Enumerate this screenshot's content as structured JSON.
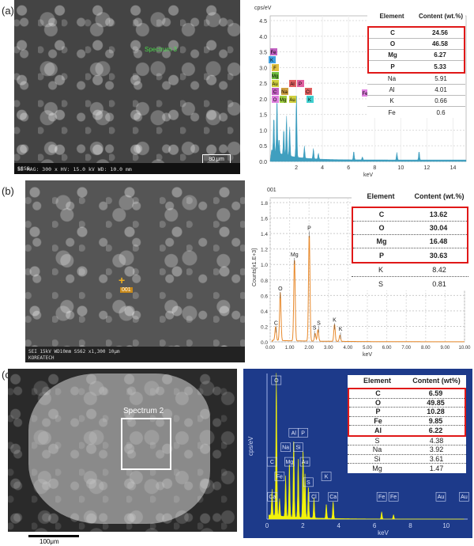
{
  "panels": {
    "a": {
      "label": "(a)",
      "sem_footer": "SE MAG: 300 x HV: 15.0 kV WD: 10.0 mm",
      "sem_scale": "80 μm",
      "sem_id": "SSSS",
      "spot_label": "Spectrum 3",
      "y_unit": "cps/eV",
      "x_unit": "keV",
      "yticks": [
        "0.0",
        "0.5",
        "1.0",
        "1.5",
        "2.0",
        "2.5",
        "3.0",
        "3.5",
        "4.0",
        "4.5"
      ],
      "xticks": [
        "2",
        "4",
        "6",
        "8",
        "10",
        "12",
        "14"
      ],
      "peak_labels": [
        "Fe",
        "K",
        "F",
        "Mg",
        "Au",
        "C",
        "Na",
        "Al",
        "P",
        "Cl",
        "O",
        "Mg",
        "Au",
        "K",
        "Fe"
      ],
      "table": {
        "headers": [
          "Element",
          "Content (wt.%)"
        ],
        "highlight": [
          [
            "C",
            "24.56"
          ],
          [
            "O",
            "46.58"
          ],
          [
            "Mg",
            "6.27"
          ],
          [
            "P",
            "5.33"
          ]
        ],
        "rest": [
          [
            "Na",
            "5.91"
          ],
          [
            "Al",
            "4.01"
          ],
          [
            "K",
            "0.66"
          ],
          [
            "Fe",
            "0.6"
          ]
        ]
      }
    },
    "b": {
      "label": "(b)",
      "sem_footer": "SEI   15kV   WD10mm   SS62         x1,300      10μm",
      "sem_brand": "KOREATECH",
      "spot_label": "001",
      "chart_title": "001",
      "y_unit": "Counts[x1.E+3]",
      "x_unit": "keV",
      "yticks": [
        "0.0",
        "0.2",
        "0.4",
        "0.6",
        "0.8",
        "1.0",
        "1.2",
        "1.4",
        "1.6",
        "1.8"
      ],
      "xticks": [
        "0.00",
        "1.00",
        "2.00",
        "3.00",
        "4.00",
        "5.00",
        "6.00",
        "7.00",
        "8.00",
        "9.00",
        "10.00"
      ],
      "peak_labels": [
        "C",
        "O",
        "Mg",
        "P",
        "S",
        "S",
        "K",
        "K"
      ],
      "table": {
        "headers": [
          "Element",
          "Content (wt.%)"
        ],
        "highlight": [
          [
            "C",
            "13.62"
          ],
          [
            "O",
            "30.04"
          ],
          [
            "Mg",
            "16.48"
          ],
          [
            "P",
            "30.63"
          ]
        ],
        "rest": [
          [
            "K",
            "8.42"
          ],
          [
            "S",
            "0.81"
          ]
        ]
      }
    },
    "c": {
      "label": "(c)",
      "spot_label": "Spectrum 2",
      "scale_label": "100μm",
      "y_unit": "cps/eV",
      "x_unit": "keV",
      "xticks": [
        "0",
        "2",
        "4",
        "6",
        "8",
        "10"
      ],
      "peak_labels": [
        "O",
        "Al",
        "P",
        "Na",
        "Si",
        "C",
        "Mg",
        "Au",
        "Fe",
        "K",
        "S",
        "Cl",
        "Ca",
        "Ca",
        "Fe",
        "Fe",
        "Au",
        "Au"
      ],
      "table": {
        "headers": [
          "Element",
          "Content (wt%)"
        ],
        "highlight": [
          [
            "C",
            "6.59"
          ],
          [
            "O",
            "49.85"
          ],
          [
            "P",
            "10.28"
          ],
          [
            "Fe",
            "9.85"
          ],
          [
            "Al",
            "6.22"
          ]
        ],
        "rest": [
          [
            "S",
            "4.38"
          ],
          [
            "Na",
            "3.92"
          ],
          [
            "Si",
            "3.61"
          ],
          [
            "Mg",
            "1.47"
          ]
        ]
      }
    }
  },
  "colors": {
    "highlight_border": "#e01818",
    "spectrum_a": "#1f8fb5",
    "spectrum_b": "#e8892b",
    "spectrum_c": "#f2f20a",
    "panel_c_bg": "#1d3a8a"
  }
}
